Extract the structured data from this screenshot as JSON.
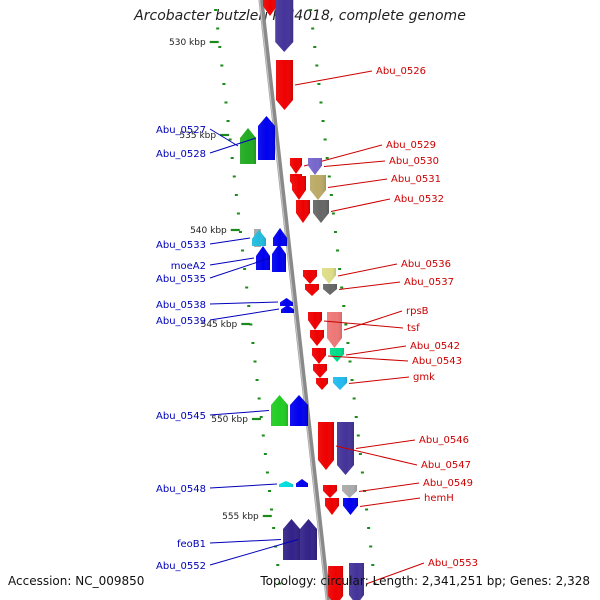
{
  "title": "Arcobacter butzleri RM4018, complete genome",
  "footer": {
    "accession": "Accession: NC_009850",
    "summary": "Topology: circular; Length: 2,341,251 bp; Genes: 2,328"
  },
  "colors": {
    "forward_label": "#cc0000",
    "reverse_label": "#0000bb",
    "backbone": "#8a8a8a",
    "tick": "#1a8a1a"
  },
  "kbp_ticks": [
    {
      "label": "530 kbp"
    },
    {
      "label": "535 kbp"
    },
    {
      "label": "540 kbp"
    },
    {
      "label": "545 kbp"
    },
    {
      "label": "550 kbp"
    },
    {
      "label": "555 kbp"
    }
  ],
  "forward_genes": [
    {
      "label": "Abu_0526",
      "color": "#ee0000"
    },
    {
      "label": "Abu_0529",
      "color": "#ee0000"
    },
    {
      "label": "Abu_0530",
      "color": "#7766cc"
    },
    {
      "label": "Abu_0531",
      "color": "#bbaa66"
    },
    {
      "label": "Abu_0532",
      "color": "#666666"
    },
    {
      "label": "Abu_0536",
      "color": "#dddd88"
    },
    {
      "label": "Abu_0537",
      "color": "#666666"
    },
    {
      "label": "rpsB",
      "color": "#ee7777"
    },
    {
      "label": "tsf",
      "color": "#ee0000"
    },
    {
      "label": "Abu_0542",
      "color": "#00dd88"
    },
    {
      "label": "Abu_0543",
      "color": "#ee0000"
    },
    {
      "label": "gmk",
      "color": "#22bbee"
    },
    {
      "label": "Abu_0546",
      "color": "#443399"
    },
    {
      "label": "Abu_0547",
      "color": "#ee0000"
    },
    {
      "label": "Abu_0549",
      "color": "#aaaaaa"
    },
    {
      "label": "hemH",
      "color": "#0000ee"
    },
    {
      "label": "Abu_0553",
      "color": "#443399"
    }
  ],
  "reverse_genes": [
    {
      "label": "Abu_0527",
      "color": "#22aa22"
    },
    {
      "label": "Abu_0528",
      "color": "#0000ee"
    },
    {
      "label": "Abu_0533",
      "color": "#22bbdd"
    },
    {
      "label": "moeA2",
      "color": "#0000ee"
    },
    {
      "label": "Abu_0535",
      "color": "#0000ee"
    },
    {
      "label": "Abu_0538",
      "color": "#0000ee"
    },
    {
      "label": "Abu_0539",
      "color": "#0000ee"
    },
    {
      "label": "Abu_0545",
      "color": "#22cc22"
    },
    {
      "label": "Abu_0548",
      "color": "#00dddd"
    },
    {
      "label": "feoB1",
      "color": "#332288"
    },
    {
      "label": "Abu_0552",
      "color": "#332288"
    }
  ]
}
